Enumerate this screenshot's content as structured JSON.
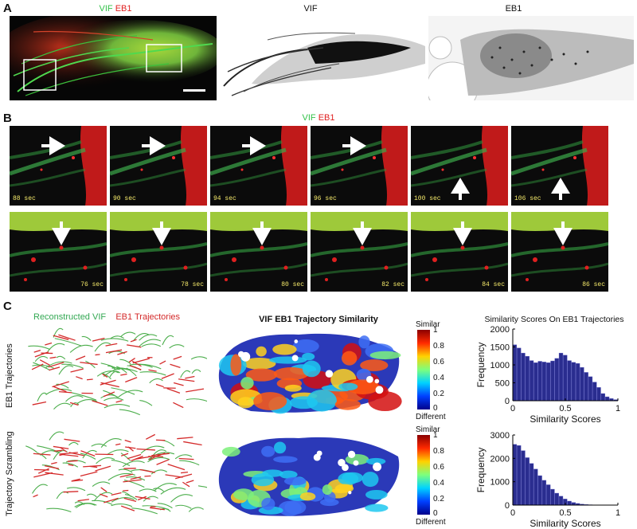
{
  "panel_letters": {
    "a": "A",
    "b": "B",
    "c": "C"
  },
  "panel_a": {
    "title_vif": "VIF",
    "title_eb1": "EB1",
    "colors": {
      "vif": "#33c24a",
      "eb1": "#e02020"
    }
  },
  "panel_b": {
    "title_vif": "VIF",
    "title_eb1": "EB1",
    "row1_times": [
      "88 sec",
      "90 sec",
      "94 sec",
      "96 sec",
      "100 sec",
      "106 sec"
    ],
    "row2_times": [
      "76 sec",
      "78 sec",
      "80 sec",
      "82 sec",
      "84 sec",
      "86 sec"
    ]
  },
  "panel_c": {
    "legend_vif": "Reconstructed VIF",
    "legend_eb1": "EB1 Trajectories",
    "row1_label": "EB1 Trajectories",
    "row2_label": "Trajectory Scrambling",
    "map_title": "VIF EB1 Trajectory Similarity",
    "hist_title": "Similarity Scores On EB1 Trajectories",
    "colorbar": {
      "top_label": "Similar",
      "bottom_label": "Different",
      "ticks": [
        "1",
        "0.8",
        "0.6",
        "0.4",
        "0.2",
        "0"
      ]
    }
  },
  "chart_data": [
    {
      "type": "bar",
      "title": "Similarity Scores On EB1 Trajectories",
      "xlabel": "Similarity Scores",
      "ylabel": "Frequency",
      "xlim": [
        0,
        1
      ],
      "ylim": [
        0,
        2000
      ],
      "yticks": [
        0,
        500,
        1000,
        1500,
        2000
      ],
      "xticks": [
        0,
        0.5,
        1
      ],
      "bin_width": 0.04,
      "values": [
        1560,
        1470,
        1330,
        1240,
        1120,
        1060,
        1100,
        1080,
        1060,
        1110,
        1180,
        1330,
        1270,
        1120,
        1070,
        1040,
        930,
        790,
        670,
        520,
        370,
        200,
        110,
        60,
        30
      ]
    },
    {
      "type": "bar",
      "xlabel": "Similarity Scores",
      "ylabel": "Frequency",
      "xlim": [
        0,
        1
      ],
      "ylim": [
        0,
        3000
      ],
      "yticks": [
        0,
        1000,
        2000,
        3000
      ],
      "xticks": [
        0,
        0.5,
        1
      ],
      "bin_width": 0.04,
      "values": [
        2600,
        2550,
        2330,
        2030,
        1780,
        1540,
        1260,
        1060,
        870,
        680,
        510,
        380,
        260,
        170,
        110,
        70,
        40,
        25,
        15,
        10,
        5,
        4,
        3,
        2,
        1
      ]
    }
  ]
}
